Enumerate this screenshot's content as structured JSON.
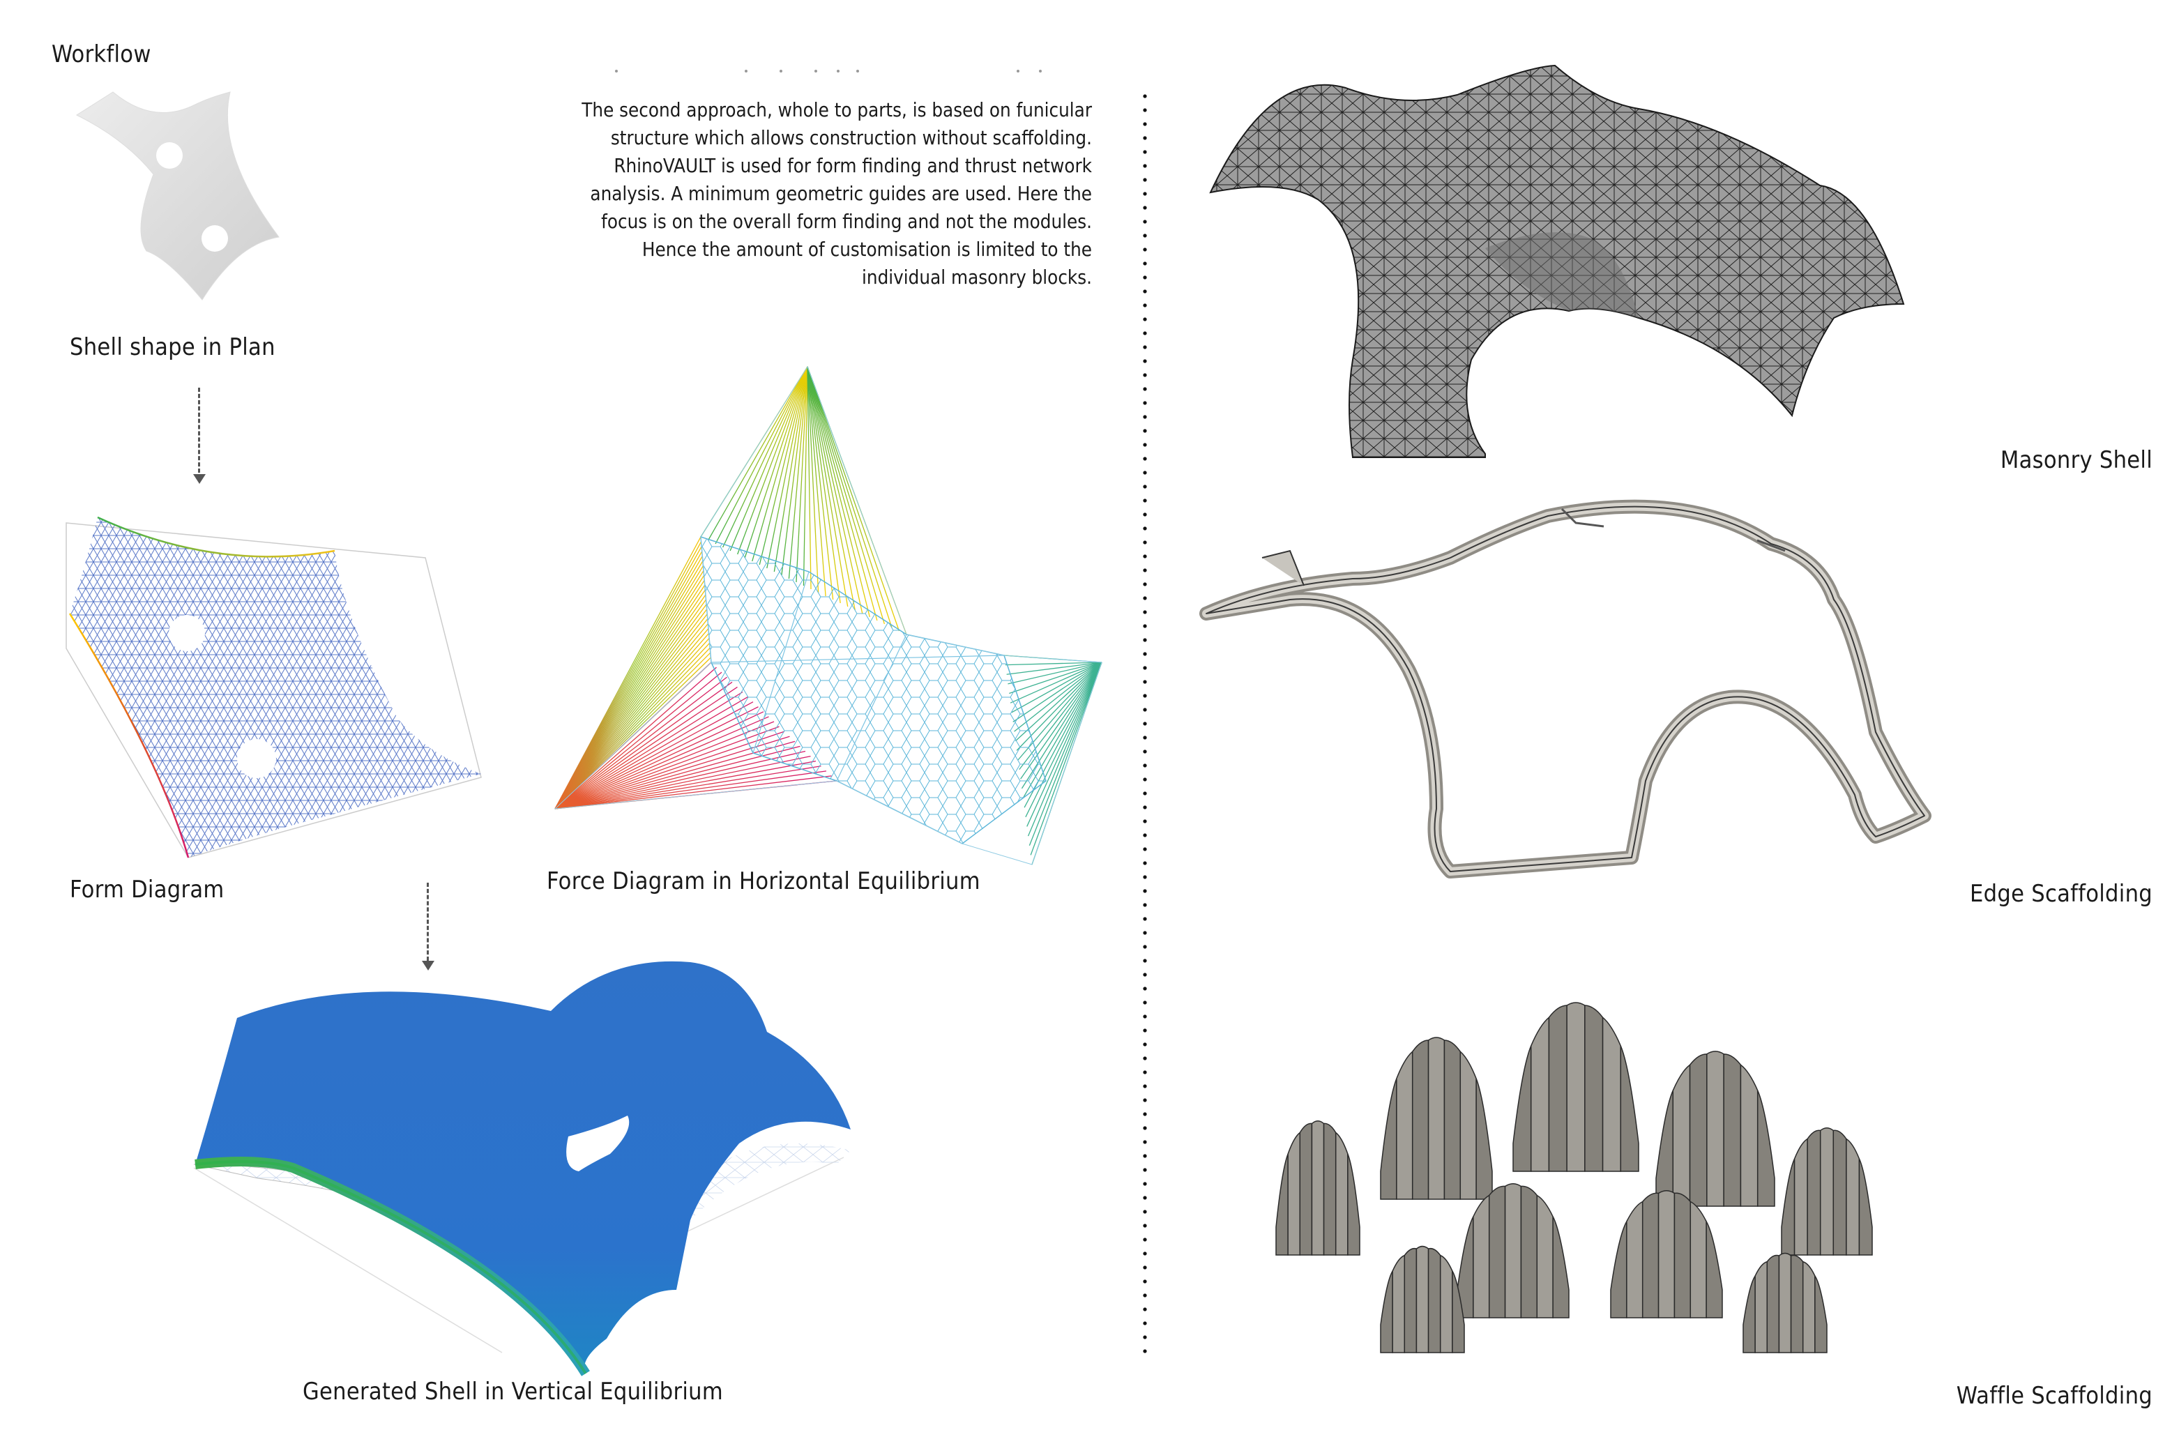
{
  "workflow_title": "Workflow",
  "paragraph": "The second approach, whole to parts,  is based on funicular\nstructure which allows construction without scaffolding.\nRhinoVAULT is used for form finding and thrust network\nanalysis. A minimum geometric guides are used. Here the\nfocus is on the overall form finding and not the modules.\nHence the amount of customisation is  limited to the\nindividual masonry blocks.",
  "labels": {
    "shell_plan": "Shell shape in Plan",
    "form_diagram": "Form Diagram",
    "force_diagram": "Force Diagram in Horizontal Equilibrium",
    "generated_shell": "Generated Shell in Vertical Equilibrium",
    "masonry_shell": "Masonry Shell",
    "edge_scaffolding": "Edge Scaffolding",
    "waffle_scaffolding": "Waffle Scaffolding"
  },
  "colors": {
    "shell_blue": "#2a6fc9",
    "mesh_dark": "#2b2b2b",
    "scaffold_grey": "#8f8c85",
    "plan_grey": "#d9d9d9"
  }
}
